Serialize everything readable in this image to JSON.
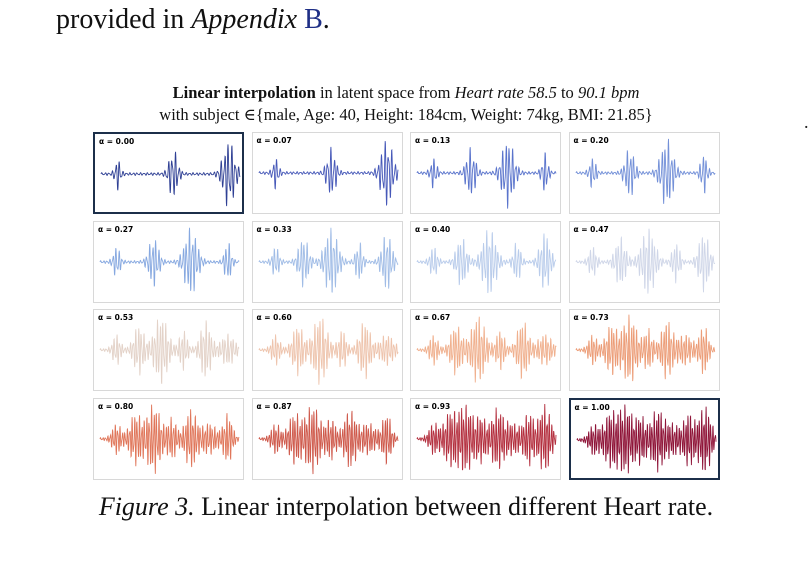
{
  "top_text": {
    "prefix": "provided in ",
    "appendix_word": "Appendix",
    "appendix_ref": "B",
    "suffix": "."
  },
  "figure_title": {
    "bold": "Linear interpolation",
    "text1": " in latent space from ",
    "from_italic": "Heart rate 58.5",
    "text2": " to ",
    "to_italic": "90.1 bpm",
    "line2": "with subject ∈{male, Age: 40, Height: 184cm, Weight: 74kg, BMI: 21.85}"
  },
  "panels": [
    {
      "label": "α = 0.00",
      "color": "#2e3f94",
      "highlight": true
    },
    {
      "label": "α = 0.07",
      "color": "#4658b8",
      "highlight": false
    },
    {
      "label": "α = 0.13",
      "color": "#5a74cc",
      "highlight": false
    },
    {
      "label": "α = 0.20",
      "color": "#7390d8",
      "highlight": false
    },
    {
      "label": "α = 0.27",
      "color": "#86a8e0",
      "highlight": false
    },
    {
      "label": "α = 0.33",
      "color": "#a0bce6",
      "highlight": false
    },
    {
      "label": "α = 0.40",
      "color": "#b9cceb",
      "highlight": false
    },
    {
      "label": "α = 0.47",
      "color": "#cfd6e8",
      "highlight": false
    },
    {
      "label": "α = 0.53",
      "color": "#e3d2c8",
      "highlight": false
    },
    {
      "label": "α = 0.60",
      "color": "#eec4ad",
      "highlight": false
    },
    {
      "label": "α = 0.67",
      "color": "#f0b08e",
      "highlight": false
    },
    {
      "label": "α = 0.73",
      "color": "#ec9d78",
      "highlight": false
    },
    {
      "label": "α = 0.80",
      "color": "#e0765a",
      "highlight": false
    },
    {
      "label": "α = 0.87",
      "color": "#cf5a4c",
      "highlight": false
    },
    {
      "label": "α = 0.93",
      "color": "#b4303f",
      "highlight": false
    },
    {
      "label": "α = 1.00",
      "color": "#8f1438",
      "highlight": true
    }
  ],
  "caption": {
    "label": "Figure 3.",
    "text": " Linear interpolation between different Heart rate."
  }
}
